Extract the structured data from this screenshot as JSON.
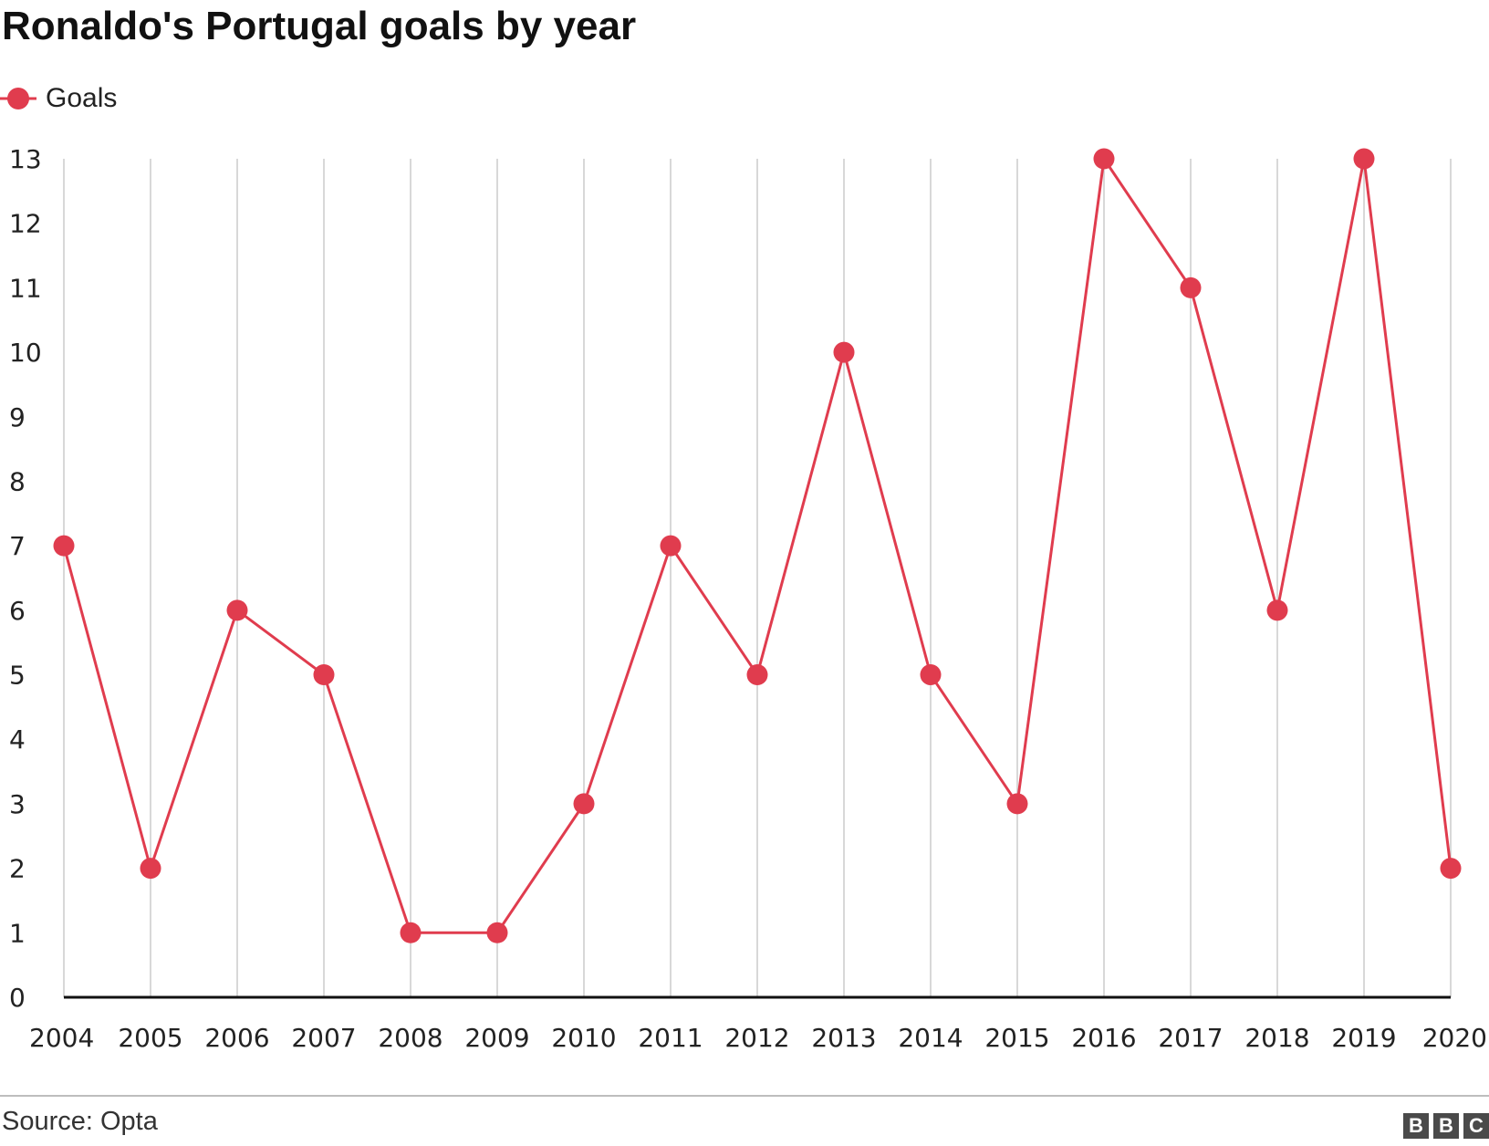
{
  "colors": {
    "series": "#e03c4e",
    "grid": "#cccccc",
    "axis": "#111111"
  },
  "legend": {
    "label": "Goals",
    "icon": "line-with-dot-icon",
    "placement": "top-left"
  },
  "footer": {
    "source": "Source: Opta",
    "logo_letters": [
      "B",
      "B",
      "C"
    ]
  },
  "chart_data": {
    "type": "line",
    "title": "Ronaldo's Portugal goals by year",
    "xlabel": "",
    "ylabel": "",
    "x": [
      "2004",
      "2005",
      "2006",
      "2007",
      "2008",
      "2009",
      "2010",
      "2011",
      "2012",
      "2013",
      "2014",
      "2015",
      "2016",
      "2017",
      "2018",
      "2019",
      "2020"
    ],
    "series": [
      {
        "name": "Goals",
        "values": [
          7,
          2,
          6,
          5,
          1,
          1,
          3,
          7,
          5,
          10,
          5,
          3,
          13,
          11,
          6,
          13,
          2
        ]
      }
    ],
    "yticks": [
      0,
      1,
      2,
      3,
      4,
      5,
      6,
      7,
      8,
      9,
      10,
      11,
      12,
      13
    ],
    "ylim": [
      0,
      13
    ],
    "grid": {
      "vertical": true,
      "horizontal": false
    }
  }
}
